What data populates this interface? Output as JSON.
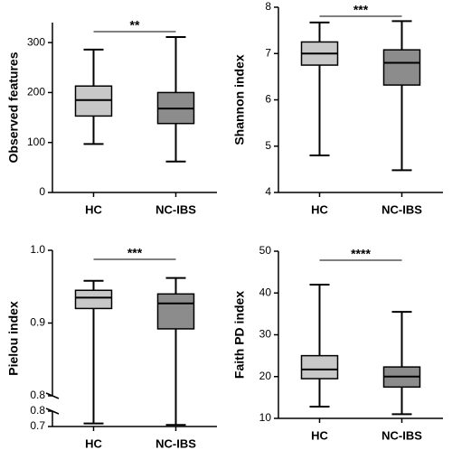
{
  "chart_data": [
    {
      "type": "box",
      "ylabel": "Observed features",
      "categories": [
        "HC",
        "NC-IBS"
      ],
      "colors": [
        "#c8c8c8",
        "#8c8c8c"
      ],
      "boxes": [
        {
          "min": 97,
          "q1": 153,
          "median": 185,
          "q3": 213,
          "max": 286
        },
        {
          "min": 62,
          "q1": 138,
          "median": 168,
          "q3": 200,
          "max": 311
        }
      ],
      "ylim": [
        0,
        340
      ],
      "yticks": [
        0,
        100,
        200,
        300
      ],
      "significance": "**"
    },
    {
      "type": "box",
      "ylabel": "Shannon index",
      "categories": [
        "HC",
        "NC-IBS"
      ],
      "colors": [
        "#c8c8c8",
        "#8c8c8c"
      ],
      "boxes": [
        {
          "min": 4.8,
          "q1": 6.75,
          "median": 7.0,
          "q3": 7.25,
          "max": 7.67
        },
        {
          "min": 4.48,
          "q1": 6.32,
          "median": 6.8,
          "q3": 7.08,
          "max": 7.7
        }
      ],
      "ylim": [
        4,
        8
      ],
      "yticks": [
        4,
        5,
        6,
        7,
        8
      ],
      "significance": "***"
    },
    {
      "type": "box",
      "ylabel": "Pielou index",
      "categories": [
        "HC",
        "NC-IBS"
      ],
      "colors": [
        "#c8c8c8",
        "#8c8c8c"
      ],
      "boxes": [
        {
          "min": 0.72,
          "q1": 0.92,
          "median": 0.935,
          "q3": 0.945,
          "max": 0.958
        },
        {
          "min": 0.71,
          "q1": 0.892,
          "median": 0.927,
          "q3": 0.94,
          "max": 0.962
        }
      ],
      "y_segments": [
        {
          "ylim": [
            0.7,
            0.8
          ],
          "yticks": [
            0.7,
            0.8
          ]
        },
        {
          "ylim": [
            0.8,
            1
          ],
          "yticks": [
            0.8,
            0.9,
            {
              "value": 1,
              "label": "1.0"
            }
          ]
        }
      ],
      "significance": "***"
    },
    {
      "type": "box",
      "ylabel": "Faith PD index",
      "categories": [
        "HC",
        "NC-IBS"
      ],
      "colors": [
        "#c8c8c8",
        "#8c8c8c"
      ],
      "boxes": [
        {
          "min": 12.8,
          "q1": 19.5,
          "median": 21.7,
          "q3": 25,
          "max": 42
        },
        {
          "min": 11,
          "q1": 17.5,
          "median": 20,
          "q3": 22.3,
          "max": 35.5
        }
      ],
      "ylim": [
        10,
        50
      ],
      "yticks": [
        10,
        20,
        30,
        40,
        50
      ],
      "significance": "****"
    }
  ]
}
